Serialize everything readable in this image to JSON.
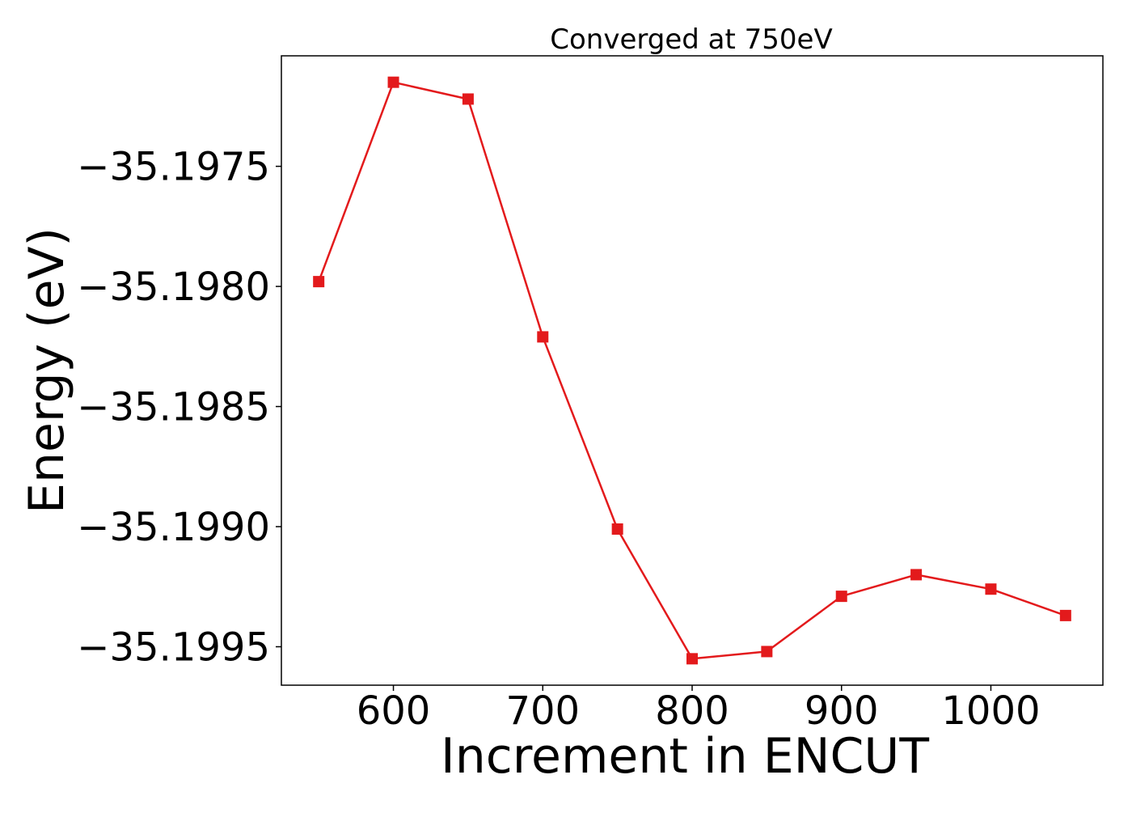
{
  "chart_data": {
    "type": "line",
    "title": "Converged at 750eV",
    "xlabel": "Increment in ENCUT",
    "ylabel": "Energy (eV)",
    "xlim": [
      525,
      1075
    ],
    "ylim": [
      -35.19966,
      -35.19704
    ],
    "xticks": [
      600,
      700,
      800,
      900,
      1000
    ],
    "xtick_labels": [
      "600",
      "700",
      "800",
      "900",
      "1000"
    ],
    "yticks": [
      -35.1975,
      -35.198,
      -35.1985,
      -35.199,
      -35.1995
    ],
    "ytick_labels": [
      "−35.1975",
      "−35.1980",
      "−35.1985",
      "−35.1990",
      "−35.1995"
    ],
    "grid": false,
    "series": [
      {
        "color": "#e31a1c",
        "marker": "square",
        "x": [
          550,
          600,
          650,
          700,
          750,
          800,
          850,
          900,
          950,
          1000,
          1050
        ],
        "y": [
          -35.19798,
          -35.19715,
          -35.19722,
          -35.19821,
          -35.19901,
          -35.19955,
          -35.19952,
          -35.19929,
          -35.1992,
          -35.19926,
          -35.19937
        ]
      }
    ]
  }
}
